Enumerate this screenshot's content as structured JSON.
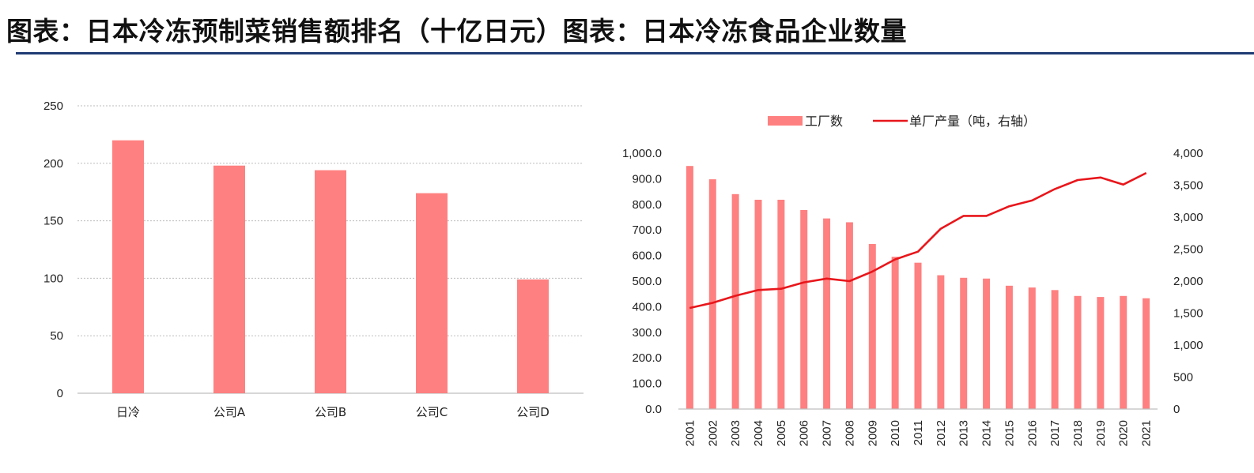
{
  "page": {
    "title": "图表：日本冷冻预制菜销售额排名（十亿日元）图表：日本冷冻食品企业数量"
  },
  "chart_data": [
    {
      "type": "bar",
      "title": "",
      "categories": [
        "日冷",
        "公司A",
        "公司B",
        "公司C",
        "公司D"
      ],
      "values": [
        220,
        198,
        194,
        174,
        99
      ],
      "ylim": [
        0,
        250
      ],
      "yticks": [
        0,
        50,
        100,
        150,
        200,
        250
      ],
      "grid": true,
      "color": "#ff8080"
    },
    {
      "type": "bar",
      "title": "",
      "legend_position": "top",
      "x": [
        "2001",
        "2002",
        "2003",
        "2004",
        "2005",
        "2006",
        "2007",
        "2008",
        "2009",
        "2010",
        "2011",
        "2012",
        "2013",
        "2014",
        "2015",
        "2016",
        "2017",
        "2018",
        "2019",
        "2020",
        "2021"
      ],
      "series": [
        {
          "name": "工厂数",
          "type": "bar",
          "axis": "left",
          "color": "#ff8080",
          "values": [
            950,
            898,
            840,
            818,
            818,
            778,
            745,
            730,
            645,
            595,
            572,
            523,
            513,
            510,
            482,
            475,
            465,
            442,
            438,
            442,
            433
          ]
        },
        {
          "name": "单厂产量（吨，右轴）",
          "type": "line",
          "axis": "right",
          "color": "#e8161b",
          "values": [
            1580,
            1660,
            1770,
            1860,
            1880,
            1980,
            2040,
            2000,
            2150,
            2340,
            2460,
            2820,
            3020,
            3020,
            3170,
            3260,
            3440,
            3580,
            3620,
            3510,
            3690
          ]
        }
      ],
      "y_left": {
        "lim": [
          0,
          1000
        ],
        "ticks": [
          "0.0",
          "100.0",
          "200.0",
          "300.0",
          "400.0",
          "500.0",
          "600.0",
          "700.0",
          "800.0",
          "900.0",
          "1,000.0"
        ]
      },
      "y_right": {
        "lim": [
          0,
          4000
        ],
        "ticks": [
          "0",
          "500",
          "1,000",
          "1,500",
          "2,000",
          "2,500",
          "3,000",
          "3,500",
          "4,000"
        ]
      },
      "grid": false
    }
  ]
}
